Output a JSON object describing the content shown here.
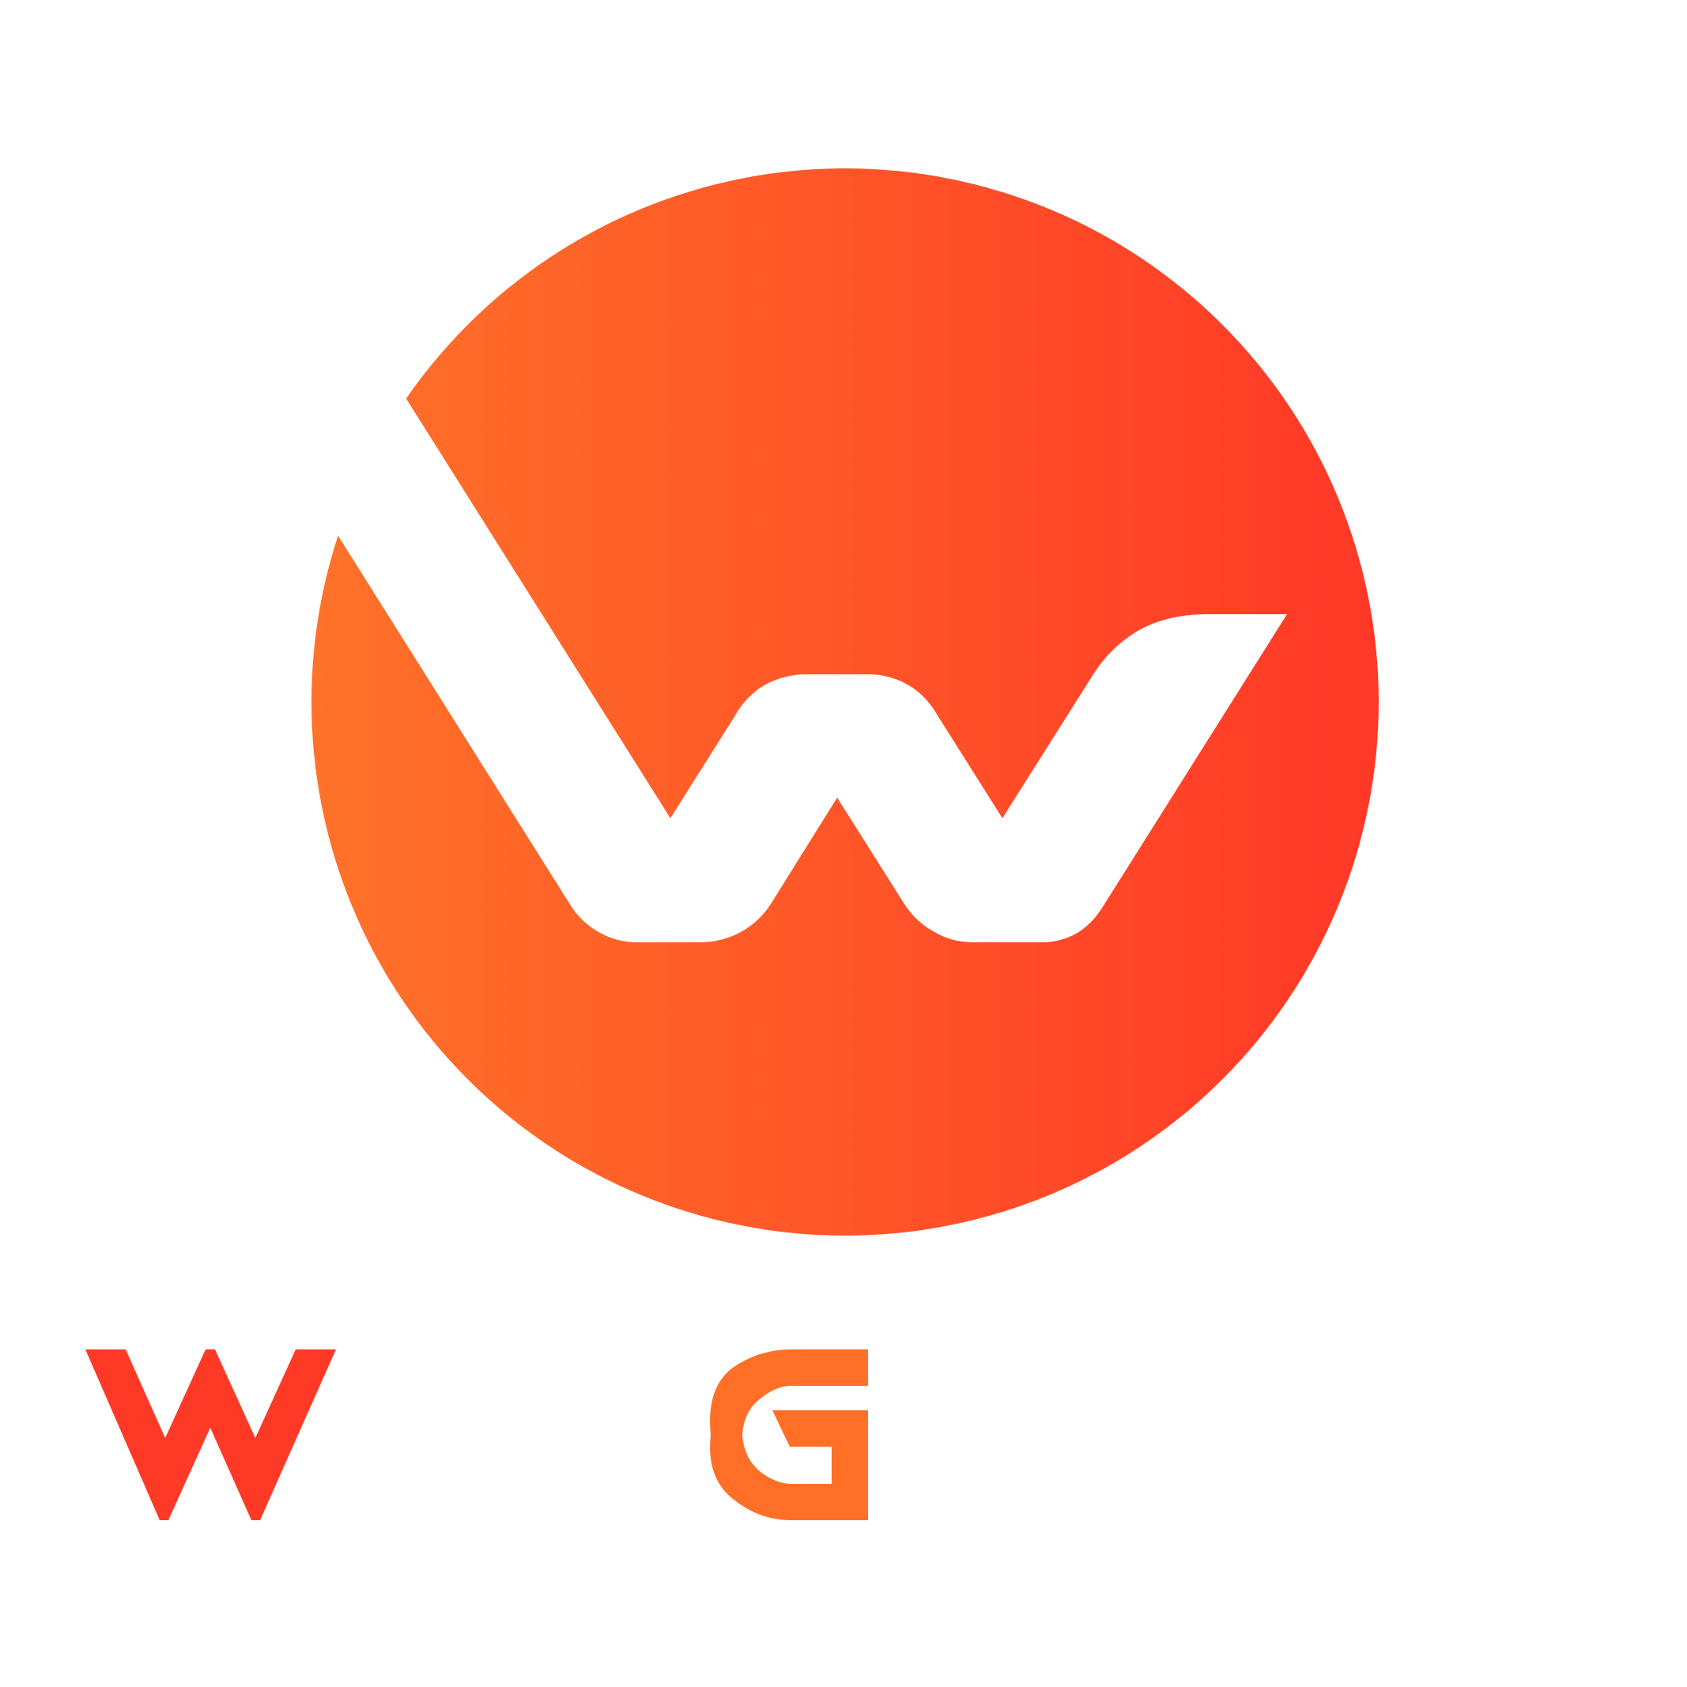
{
  "logo": {
    "emblem_icon": "w-circle-emblem-icon",
    "letter_w_icon": "letter-w-icon",
    "letter_g_icon": "letter-g-icon",
    "colors": {
      "background": "#ffffff",
      "gradient_start": "#ff7229",
      "gradient_end": "#ff3827",
      "letter_w": "#fe3a27",
      "letter_g": "#ff6f27",
      "mark": "#ffffff"
    }
  }
}
